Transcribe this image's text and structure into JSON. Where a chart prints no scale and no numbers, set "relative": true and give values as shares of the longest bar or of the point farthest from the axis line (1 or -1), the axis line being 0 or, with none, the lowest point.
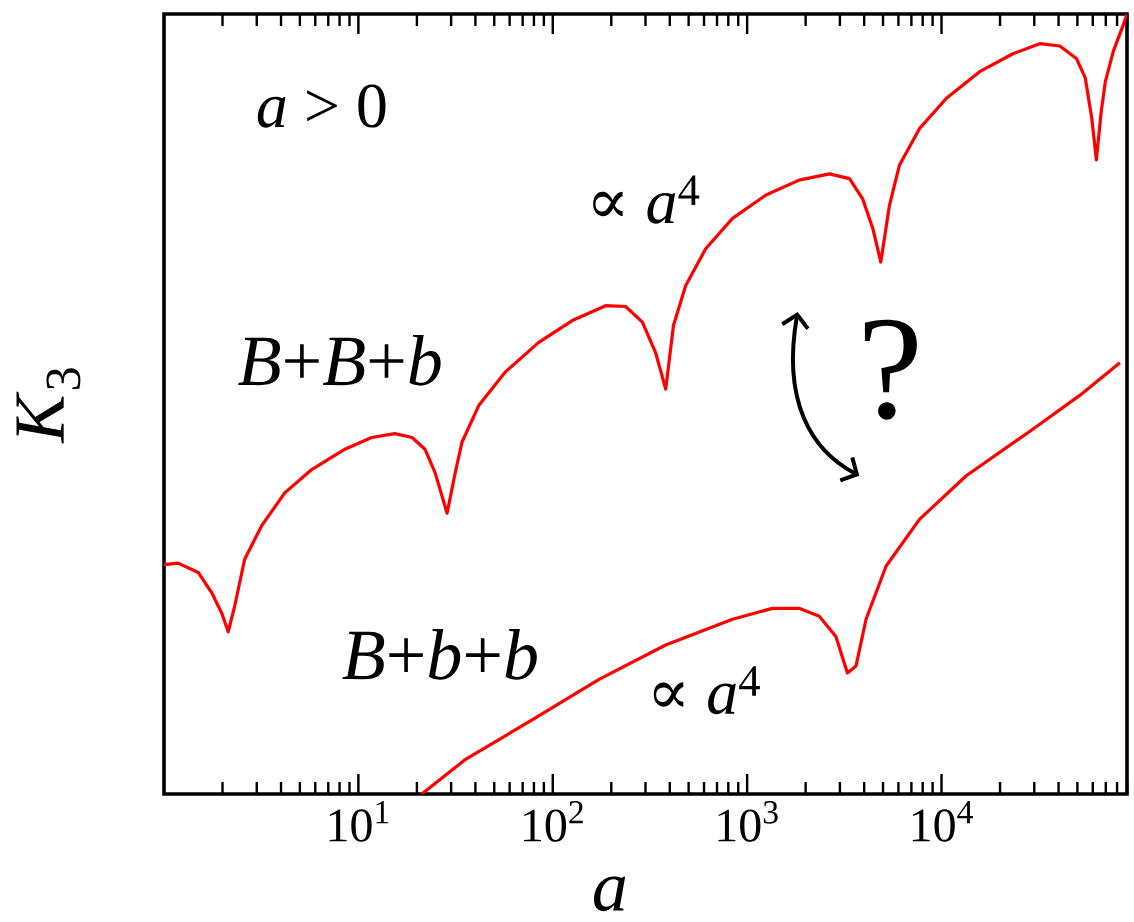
{
  "chart_data": {
    "type": "line",
    "relative": true,
    "log": "x",
    "tick_labels": "x",
    "xlabel": "a",
    "ylabel": "*K*$_{3}$",
    "xlim": [
      1,
      90000
    ],
    "xticks": [
      {
        "value": 10,
        "label": "10$^{1}$"
      },
      {
        "value": 100,
        "label": "10$^{2}$"
      },
      {
        "value": 1000,
        "label": "10$^{3}$"
      },
      {
        "value": 10000,
        "label": "10$^{4}$"
      }
    ],
    "series": [
      {
        "name": "*B*+*B*+*b*",
        "color": "#ff0000",
        "x": [
          1,
          1.18,
          1.5,
          1.76,
          1.98,
          2.14,
          2.31,
          2.6,
          3.18,
          4.18,
          5.75,
          8.53,
          11.7,
          15.4,
          18.9,
          22,
          24.8,
          28.6,
          31.5,
          34.1,
          41.6,
          57,
          84.7,
          126,
          187,
          237,
          289,
          338,
          381,
          418,
          483,
          612,
          841,
          1250,
          1850,
          2650,
          3360,
          3930,
          4430,
          4870,
          5400,
          6070,
          7700,
          10600,
          15700,
          23300,
          32000,
          40600,
          49400,
          54900,
          59300,
          62600,
          66300,
          69600,
          76500,
          86100,
          90000
        ],
        "values": [
          0.294,
          0.296,
          0.284,
          0.258,
          0.232,
          0.208,
          0.241,
          0.301,
          0.344,
          0.386,
          0.416,
          0.442,
          0.457,
          0.462,
          0.457,
          0.442,
          0.412,
          0.36,
          0.412,
          0.451,
          0.498,
          0.541,
          0.579,
          0.607,
          0.626,
          0.625,
          0.605,
          0.566,
          0.519,
          0.601,
          0.652,
          0.699,
          0.738,
          0.768,
          0.787,
          0.795,
          0.789,
          0.763,
          0.725,
          0.682,
          0.755,
          0.806,
          0.853,
          0.892,
          0.926,
          0.949,
          0.962,
          0.959,
          0.943,
          0.918,
          0.866,
          0.813,
          0.875,
          0.913,
          0.952,
          0.986,
          1
        ]
      },
      {
        "name": "*B*+*b*+*b*",
        "color": "#ff0000",
        "x": [
          21.2,
          35.4,
          78.3,
          173,
          381,
          841,
          1350,
          1850,
          2350,
          2860,
          3280,
          3630,
          4090,
          5180,
          7700,
          13400,
          29600,
          51400,
          82700
        ],
        "values": [
          0,
          0.044,
          0.095,
          0.147,
          0.191,
          0.224,
          0.238,
          0.238,
          0.228,
          0.202,
          0.155,
          0.164,
          0.224,
          0.292,
          0.352,
          0.408,
          0.468,
          0.511,
          0.553
        ]
      }
    ],
    "annotations": [
      "*a* > 0",
      "∝ *a*$^{4}$",
      "∝ *a*$^{4}$",
      "?"
    ]
  }
}
